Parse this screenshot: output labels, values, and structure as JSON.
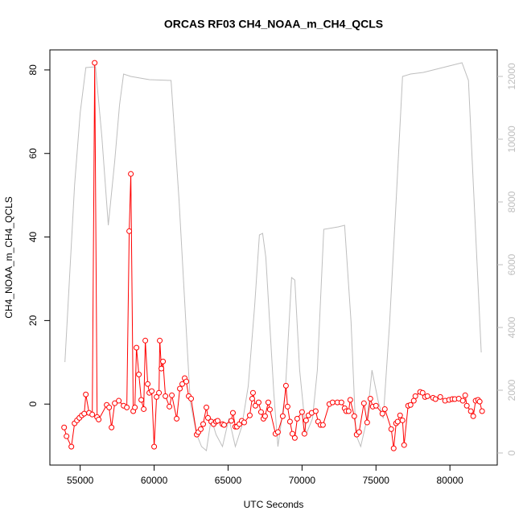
{
  "chart_data": {
    "type": "line",
    "title": "ORCAS RF03 CH4_NOAA_m_CH4_QCLS",
    "x_label": "UTC Seconds",
    "y_label": "CH4_NOAA_m_CH4_QCLS",
    "xlim": [
      52950,
      83200
    ],
    "xticks": [
      55000,
      60000,
      65000,
      70000,
      75000,
      80000
    ],
    "ylim": [
      -14.6,
      84.8
    ],
    "yticks": [
      0,
      20,
      40,
      60,
      80
    ],
    "y2lim": [
      -385,
      12846
    ],
    "y2ticks": [
      0,
      2000,
      4000,
      6000,
      8000,
      10000,
      12000
    ],
    "series": [
      {
        "color": "#bebebe",
        "axis": "y2",
        "x": [
          53967,
          54620,
          55000,
          55380,
          56033,
          56467,
          56902,
          57337,
          57663,
          57935,
          58424,
          59674,
          61141,
          61685,
          62446,
          62881,
          63207,
          63533,
          63859,
          64185,
          64620,
          65054,
          65489,
          65924,
          66359,
          66794,
          67120,
          67337,
          67555,
          68098,
          68370,
          68859,
          69294,
          69511,
          69837,
          70272,
          70707,
          71033,
          71468,
          72446,
          72881,
          73316,
          73642,
          73968,
          74403,
          74729,
          75163,
          75489,
          75924,
          76359,
          76794,
          77337,
          78207,
          80815,
          81250,
          82120
        ],
        "values": [
          2897,
          8538,
          10846,
          12282,
          12308,
          10077,
          7256,
          9308,
          11103,
          12077,
          12000,
          11897,
          11872,
          8026,
          1615,
          590,
          205,
          77,
          1103,
          590,
          205,
          1103,
          205,
          846,
          2128,
          4692,
          6949,
          7000,
          6231,
          1872,
          205,
          1872,
          5590,
          5513,
          2641,
          590,
          1103,
          2641,
          7128,
          7205,
          7256,
          4179,
          590,
          205,
          1103,
          2641,
          1615,
          1103,
          4179,
          8026,
          12000,
          12077,
          12128,
          12436,
          11872,
          3205
        ]
      },
      {
        "color": "#ff0000",
        "x": [
          53913,
          54076,
          54402,
          54620,
          54783,
          54946,
          55109,
          55272,
          55380,
          55598,
          55815,
          55978,
          56141,
          56250,
          56793,
          56957,
          57120,
          57337,
          57609,
          57935,
          58152,
          58315,
          58424,
          58587,
          58696,
          58804,
          58967,
          59130,
          59294,
          59402,
          59565,
          59674,
          59837,
          60000,
          60163,
          60326,
          60380,
          60489,
          60598,
          60761,
          61033,
          61196,
          61522,
          61739,
          61902,
          62065,
          62174,
          62337,
          62500,
          62881,
          62989,
          63152,
          63315,
          63533,
          63641,
          63859,
          64022,
          64185,
          64294,
          64620,
          64728,
          65218,
          65326,
          65489,
          65598,
          65761,
          65924,
          66087,
          66467,
          66630,
          66685,
          66848,
          67065,
          67228,
          67391,
          67500,
          67718,
          67826,
          68207,
          68370,
          68696,
          68913,
          69022,
          69185,
          69348,
          69511,
          69674,
          70000,
          70163,
          70272,
          70435,
          70652,
          70924,
          71087,
          71250,
          71413,
          71848,
          72065,
          72391,
          72663,
          72881,
          72989,
          73152,
          73261,
          73533,
          73696,
          73859,
          74185,
          74403,
          74620,
          74783,
          75000,
          75435,
          75598,
          76033,
          76196,
          76359,
          76467,
          76630,
          76794,
          76902,
          77174,
          77337,
          77555,
          77663,
          77989,
          78152,
          78315,
          78478,
          78859,
          79022,
          79348,
          79674,
          79946,
          80163,
          80326,
          80598,
          80870,
          81033,
          81141,
          81413,
          81576,
          81739,
          81902,
          82011,
          82174
        ],
        "values": [
          -5.6,
          -7.7,
          -10.2,
          -4.6,
          -3.9,
          -3.3,
          -2.7,
          -2.3,
          2.3,
          -2.1,
          -2.5,
          81.7,
          -3.1,
          -3.7,
          -0.2,
          -0.8,
          -5.6,
          0.2,
          0.8,
          -0.4,
          -0.8,
          41.4,
          55.1,
          -1.7,
          -0.8,
          13.5,
          7.1,
          1.0,
          -1.2,
          15.2,
          4.8,
          2.7,
          3.1,
          -10.2,
          1.7,
          2.7,
          15.2,
          8.5,
          10.2,
          1.9,
          -0.6,
          2.1,
          -3.5,
          3.7,
          4.8,
          6.2,
          5.4,
          1.9,
          1.3,
          -7.3,
          -6.7,
          -6.0,
          -4.8,
          -0.8,
          -3.3,
          -4.2,
          -4.8,
          -4.2,
          -4.0,
          -4.8,
          -5.0,
          -4.0,
          -2.1,
          -5.4,
          -5.4,
          -4.8,
          -4.0,
          -4.4,
          -2.7,
          1.3,
          2.7,
          -0.4,
          0.4,
          -1.9,
          -3.5,
          -2.9,
          0.4,
          -1.3,
          -7.1,
          -6.7,
          -2.9,
          4.4,
          -0.6,
          -4.2,
          -7.1,
          -8.1,
          -3.5,
          -1.9,
          -7.1,
          -3.9,
          -2.7,
          -2.1,
          -1.7,
          -4.2,
          -5.0,
          -5.0,
          0.0,
          0.4,
          0.4,
          0.4,
          -1.0,
          -1.7,
          -1.7,
          1.0,
          -2.9,
          -7.3,
          -6.7,
          0.2,
          -4.4,
          1.3,
          -0.6,
          -0.4,
          -2.3,
          -1.2,
          -6.0,
          -10.6,
          -4.6,
          -4.2,
          -2.7,
          -3.9,
          -9.8,
          -0.4,
          -0.2,
          0.8,
          1.9,
          2.9,
          2.7,
          1.7,
          1.9,
          1.5,
          1.2,
          1.7,
          0.8,
          1.0,
          1.2,
          1.2,
          1.3,
          0.8,
          2.1,
          -0.4,
          -1.7,
          -2.9,
          0.8,
          1.0,
          0.6,
          -1.7
        ]
      }
    ]
  }
}
